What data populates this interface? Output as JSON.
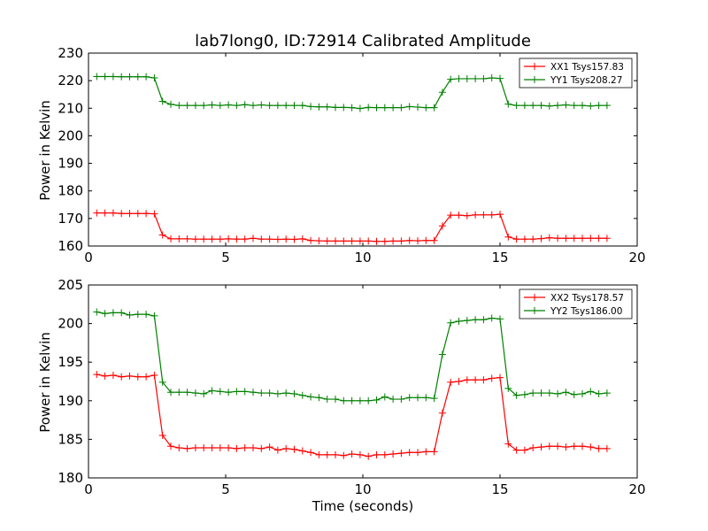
{
  "chart_data": [
    {
      "type": "line",
      "title": "lab7long0, ID:72914 Calibrated Amplitude",
      "xlabel": "",
      "ylabel": "Power in Kelvin",
      "xlim": [
        0,
        20
      ],
      "ylim": [
        160,
        230
      ],
      "xticks": [
        0,
        5,
        10,
        15,
        20
      ],
      "yticks": [
        160,
        170,
        180,
        190,
        200,
        210,
        220,
        230
      ],
      "grid": false,
      "legend": "top-right",
      "x": [
        0.3,
        0.6,
        0.9,
        1.2,
        1.5,
        1.8,
        2.1,
        2.4,
        2.7,
        3.0,
        3.3,
        3.6,
        3.9,
        4.2,
        4.5,
        4.8,
        5.1,
        5.4,
        5.7,
        6.0,
        6.3,
        6.6,
        6.9,
        7.2,
        7.5,
        7.8,
        8.1,
        8.4,
        8.7,
        9.0,
        9.3,
        9.6,
        9.9,
        10.2,
        10.5,
        10.8,
        11.1,
        11.4,
        11.7,
        12.0,
        12.3,
        12.6,
        12.9,
        13.2,
        13.5,
        13.8,
        14.1,
        14.4,
        14.7,
        15.0,
        15.3,
        15.6,
        15.9,
        16.2,
        16.5,
        16.8,
        17.1,
        17.4,
        17.7,
        18.0,
        18.3,
        18.6,
        18.9
      ],
      "series": [
        {
          "name": "XX1 Tsys157.83",
          "color": "#ff0000",
          "values": [
            172.0,
            172.0,
            172.0,
            171.8,
            171.8,
            171.8,
            171.8,
            171.7,
            164.0,
            162.6,
            162.6,
            162.6,
            162.5,
            162.5,
            162.5,
            162.5,
            162.6,
            162.5,
            162.5,
            162.8,
            162.5,
            162.5,
            162.4,
            162.5,
            162.4,
            162.6,
            162.0,
            161.9,
            161.8,
            161.8,
            161.8,
            161.8,
            161.8,
            161.8,
            161.7,
            161.7,
            161.8,
            161.8,
            162.0,
            161.9,
            162.0,
            162.0,
            167.3,
            171.2,
            171.2,
            171.0,
            171.3,
            171.3,
            171.3,
            171.5,
            163.3,
            162.5,
            162.5,
            162.5,
            162.7,
            163.0,
            162.8,
            162.8,
            162.8,
            162.8,
            162.8,
            162.8,
            162.8
          ]
        },
        {
          "name": "YY1 Tsys208.27",
          "color": "#008000",
          "values": [
            221.5,
            221.5,
            221.5,
            221.4,
            221.4,
            221.4,
            221.4,
            221.0,
            212.5,
            211.4,
            211.0,
            211.0,
            211.0,
            211.0,
            211.2,
            211.0,
            211.2,
            211.0,
            211.3,
            211.0,
            211.2,
            211.0,
            211.0,
            211.0,
            211.0,
            211.0,
            210.6,
            210.5,
            210.5,
            210.3,
            210.3,
            210.2,
            209.9,
            210.3,
            210.2,
            210.2,
            210.2,
            210.2,
            210.6,
            210.4,
            210.2,
            210.2,
            215.8,
            220.5,
            220.7,
            220.7,
            220.7,
            220.7,
            221.0,
            220.8,
            211.5,
            211.0,
            211.0,
            211.0,
            211.0,
            210.8,
            211.0,
            211.2,
            211.0,
            211.0,
            210.8,
            211.0,
            211.0
          ]
        }
      ]
    },
    {
      "type": "line",
      "title": "",
      "xlabel": "Time (seconds)",
      "ylabel": "Power in Kelvin",
      "xlim": [
        0,
        20
      ],
      "ylim": [
        180,
        205
      ],
      "xticks": [
        0,
        5,
        10,
        15,
        20
      ],
      "yticks": [
        180,
        185,
        190,
        195,
        200,
        205
      ],
      "grid": false,
      "legend": "top-right",
      "x": [
        0.3,
        0.6,
        0.9,
        1.2,
        1.5,
        1.8,
        2.1,
        2.4,
        2.7,
        3.0,
        3.3,
        3.6,
        3.9,
        4.2,
        4.5,
        4.8,
        5.1,
        5.4,
        5.7,
        6.0,
        6.3,
        6.6,
        6.9,
        7.2,
        7.5,
        7.8,
        8.1,
        8.4,
        8.7,
        9.0,
        9.3,
        9.6,
        9.9,
        10.2,
        10.5,
        10.8,
        11.1,
        11.4,
        11.7,
        12.0,
        12.3,
        12.6,
        12.9,
        13.2,
        13.5,
        13.8,
        14.1,
        14.4,
        14.7,
        15.0,
        15.3,
        15.6,
        15.9,
        16.2,
        16.5,
        16.8,
        17.1,
        17.4,
        17.7,
        18.0,
        18.3,
        18.6,
        18.9
      ],
      "series": [
        {
          "name": "XX2 Tsys178.57",
          "color": "#ff0000",
          "values": [
            193.4,
            193.2,
            193.3,
            193.1,
            193.2,
            193.1,
            193.1,
            193.3,
            185.5,
            184.1,
            183.9,
            183.8,
            183.9,
            183.9,
            183.9,
            183.9,
            183.9,
            183.8,
            183.9,
            183.9,
            183.8,
            184.0,
            183.6,
            183.8,
            183.7,
            183.5,
            183.3,
            183.0,
            183.0,
            183.0,
            182.9,
            183.1,
            183.0,
            182.8,
            183.0,
            183.0,
            183.1,
            183.2,
            183.3,
            183.3,
            183.4,
            183.4,
            188.4,
            192.4,
            192.5,
            192.7,
            192.7,
            192.7,
            192.9,
            193.0,
            184.4,
            183.6,
            183.6,
            183.9,
            184.0,
            184.1,
            184.1,
            184.0,
            184.1,
            184.1,
            184.0,
            183.8,
            183.8
          ]
        },
        {
          "name": "YY2 Tsys186.00",
          "color": "#008000",
          "values": [
            201.5,
            201.3,
            201.4,
            201.4,
            201.1,
            201.2,
            201.2,
            201.0,
            192.4,
            191.1,
            191.1,
            191.1,
            191.0,
            190.9,
            191.3,
            191.2,
            191.1,
            191.2,
            191.2,
            191.1,
            191.0,
            191.0,
            190.9,
            191.0,
            190.9,
            190.7,
            190.5,
            190.4,
            190.2,
            190.2,
            190.0,
            190.0,
            190.0,
            190.0,
            190.1,
            190.5,
            190.2,
            190.2,
            190.4,
            190.4,
            190.4,
            190.3,
            196.0,
            200.1,
            200.3,
            200.4,
            200.5,
            200.5,
            200.7,
            200.6,
            191.6,
            190.7,
            190.8,
            191.0,
            191.0,
            191.0,
            190.9,
            191.1,
            190.8,
            190.9,
            191.2,
            190.9,
            191.0
          ]
        }
      ]
    }
  ]
}
